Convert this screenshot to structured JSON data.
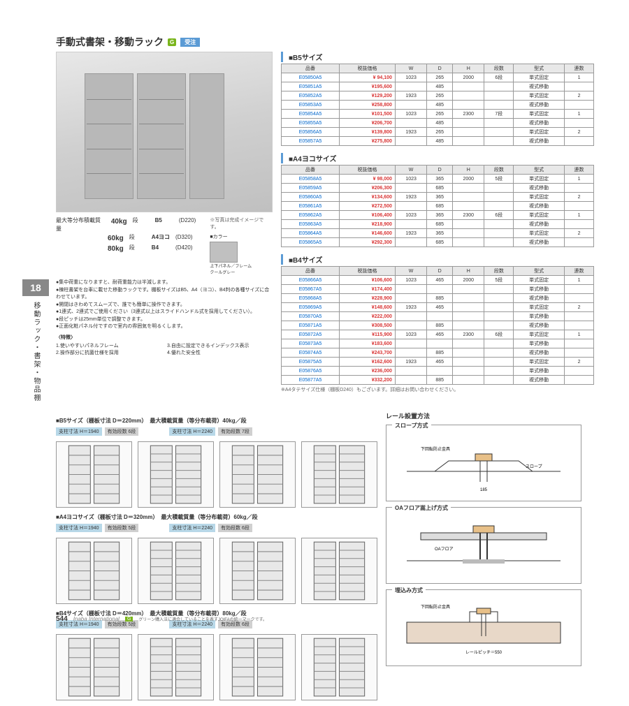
{
  "title": "手動式書架・移動ラック",
  "badges": {
    "green": "G",
    "order": "受注"
  },
  "product_note": "※写真は完成イメージです。",
  "load_specs": {
    "label": "最大等分布積載質量",
    "rows": [
      {
        "weight": "40kg",
        "unit": "段",
        "size": "B5",
        "depth": "(D220)"
      },
      {
        "weight": "60kg",
        "unit": "段",
        "size": "A4ヨコ",
        "depth": "(D320)"
      },
      {
        "weight": "80kg",
        "unit": "段",
        "size": "B4",
        "depth": "(D420)"
      }
    ]
  },
  "color": {
    "label": "■カラー",
    "swatch_name": "上下パネル／フレーム\nクールグレー"
  },
  "bullets": [
    "●集中荷重になりますと、耐荷重能力は半減します。",
    "●棟柱書架を台車に載せた移動ラックです。棚板サイズはB5、A4（ヨコ）、B4判の各種サイズに合わせています。",
    "●開閉はきわめてスムーズで、誰でも簡単に操作できます。",
    "●1連式、2連式でご使用ください（3連式以上はスライドハンドル式を採用してください）。",
    "●段ピッチは25mm単位で調整できます。",
    "●正面化粧パネル付ですので室内の雰囲気を明るくします。"
  ],
  "features": {
    "title": "〈特徴〉",
    "items": [
      "1.使いやすいパネルフレーム",
      "2.操作部分に抗菌仕様を採用",
      "3.自由に設定できるインデックス表示",
      "4.優れた安全性"
    ]
  },
  "tables": {
    "headers": [
      "品番",
      "税抜価格",
      "W",
      "D",
      "H",
      "段数",
      "型式",
      "連数"
    ],
    "b5": {
      "title": "■B5サイズ",
      "rows": [
        [
          "E05850A5",
          "¥ 94,100",
          "1023",
          "265",
          "2000",
          "6段",
          "単式固定",
          "1"
        ],
        [
          "E05851A5",
          "¥195,600",
          "",
          "485",
          "",
          "",
          "複式移動",
          ""
        ],
        [
          "E05852A5",
          "¥129,200",
          "1923",
          "265",
          "",
          "",
          "単式固定",
          "2"
        ],
        [
          "E05853A5",
          "¥258,800",
          "",
          "485",
          "",
          "",
          "複式移動",
          ""
        ],
        [
          "E05854A5",
          "¥101,500",
          "1023",
          "265",
          "2300",
          "7段",
          "単式固定",
          "1"
        ],
        [
          "E05855A5",
          "¥206,700",
          "",
          "485",
          "",
          "",
          "複式移動",
          ""
        ],
        [
          "E05856A5",
          "¥139,800",
          "1923",
          "265",
          "",
          "",
          "単式固定",
          "2"
        ],
        [
          "E05857A5",
          "¥275,800",
          "",
          "485",
          "",
          "",
          "複式移動",
          ""
        ]
      ]
    },
    "a4": {
      "title": "■A4ヨコサイズ",
      "rows": [
        [
          "E05858A5",
          "¥ 98,000",
          "1023",
          "365",
          "2000",
          "5段",
          "単式固定",
          "1"
        ],
        [
          "E05859A5",
          "¥206,300",
          "",
          "685",
          "",
          "",
          "複式移動",
          ""
        ],
        [
          "E05860A5",
          "¥134,600",
          "1923",
          "365",
          "",
          "",
          "単式固定",
          "2"
        ],
        [
          "E05861A5",
          "¥272,500",
          "",
          "685",
          "",
          "",
          "複式移動",
          ""
        ],
        [
          "E05862A5",
          "¥106,400",
          "1023",
          "365",
          "2300",
          "6段",
          "単式固定",
          "1"
        ],
        [
          "E05863A5",
          "¥218,900",
          "",
          "685",
          "",
          "",
          "複式移動",
          ""
        ],
        [
          "E05864A5",
          "¥146,600",
          "1923",
          "365",
          "",
          "",
          "単式固定",
          "2"
        ],
        [
          "E05865A5",
          "¥292,300",
          "",
          "685",
          "",
          "",
          "複式移動",
          ""
        ]
      ]
    },
    "b4": {
      "title": "■B4サイズ",
      "rows": [
        [
          "E05866A5",
          "¥106,600",
          "1023",
          "465",
          "2000",
          "5段",
          "単式固定",
          "1"
        ],
        [
          "E05867A5",
          "¥174,400",
          "",
          "",
          "",
          "",
          "単式移動",
          ""
        ],
        [
          "E05868A5",
          "¥228,900",
          "",
          "885",
          "",
          "",
          "複式移動",
          ""
        ],
        [
          "E05869A5",
          "¥148,600",
          "1923",
          "465",
          "",
          "",
          "単式固定",
          "2"
        ],
        [
          "E05870A5",
          "¥222,000",
          "",
          "",
          "",
          "",
          "単式移動",
          ""
        ],
        [
          "E05871A5",
          "¥308,500",
          "",
          "885",
          "",
          "",
          "複式移動",
          ""
        ],
        [
          "E05872A5",
          "¥115,900",
          "1023",
          "465",
          "2300",
          "6段",
          "単式固定",
          "1"
        ],
        [
          "E05873A5",
          "¥183,600",
          "",
          "",
          "",
          "",
          "単式移動",
          ""
        ],
        [
          "E05874A5",
          "¥243,700",
          "",
          "885",
          "",
          "",
          "複式移動",
          ""
        ],
        [
          "E05875A5",
          "¥162,600",
          "1923",
          "465",
          "",
          "",
          "単式固定",
          "2"
        ],
        [
          "E05876A5",
          "¥236,000",
          "",
          "",
          "",
          "",
          "単式移動",
          ""
        ],
        [
          "E05877A5",
          "¥332,200",
          "",
          "885",
          "",
          "",
          "複式移動",
          ""
        ]
      ],
      "note": "※A4タテサイズ仕様（棚板D240）もございます。詳細はお問い合わせください。"
    }
  },
  "diagrams": {
    "b5": {
      "title": "■B5サイズ（棚板寸法 D＝220mm）　最大積載質量（等分布載荷）40kg／段",
      "h1": "支柱寸法  H＝1940",
      "h2": "支柱寸法  H＝2240",
      "s1": "有効段数 6段",
      "s2": "有効段数 7段"
    },
    "a4": {
      "title": "■A4ヨコサイズ（棚板寸法 D＝320mm）　最大積載質量（等分布載荷）60kg／段",
      "h1": "支柱寸法  H＝1940",
      "h2": "支柱寸法  H＝2240",
      "s1": "有効段数 5段",
      "s2": "有効段数 6段"
    },
    "b4": {
      "title": "■B4サイズ（棚板寸法 D＝420mm）　最大積載質量（等分布載荷）80kg／段",
      "h1": "支柱寸法  H＝1940",
      "h2": "支柱寸法  H＝2240",
      "s1": "有効段数 5段",
      "s2": "有効段数 6段"
    }
  },
  "rail": {
    "title": "レール設置方法",
    "methods": [
      "スロープ方式",
      "OAフロア嵩上げ方式",
      "埋込み方式"
    ]
  },
  "side_tab": {
    "num": "18",
    "text": "移動ラック・書架・物品棚"
  },
  "footer": {
    "page": "544",
    "brand": "Inaba International",
    "badge": "G",
    "note": "グリーン購入法に適合していることを表すJOIFAの統一マークです。"
  }
}
